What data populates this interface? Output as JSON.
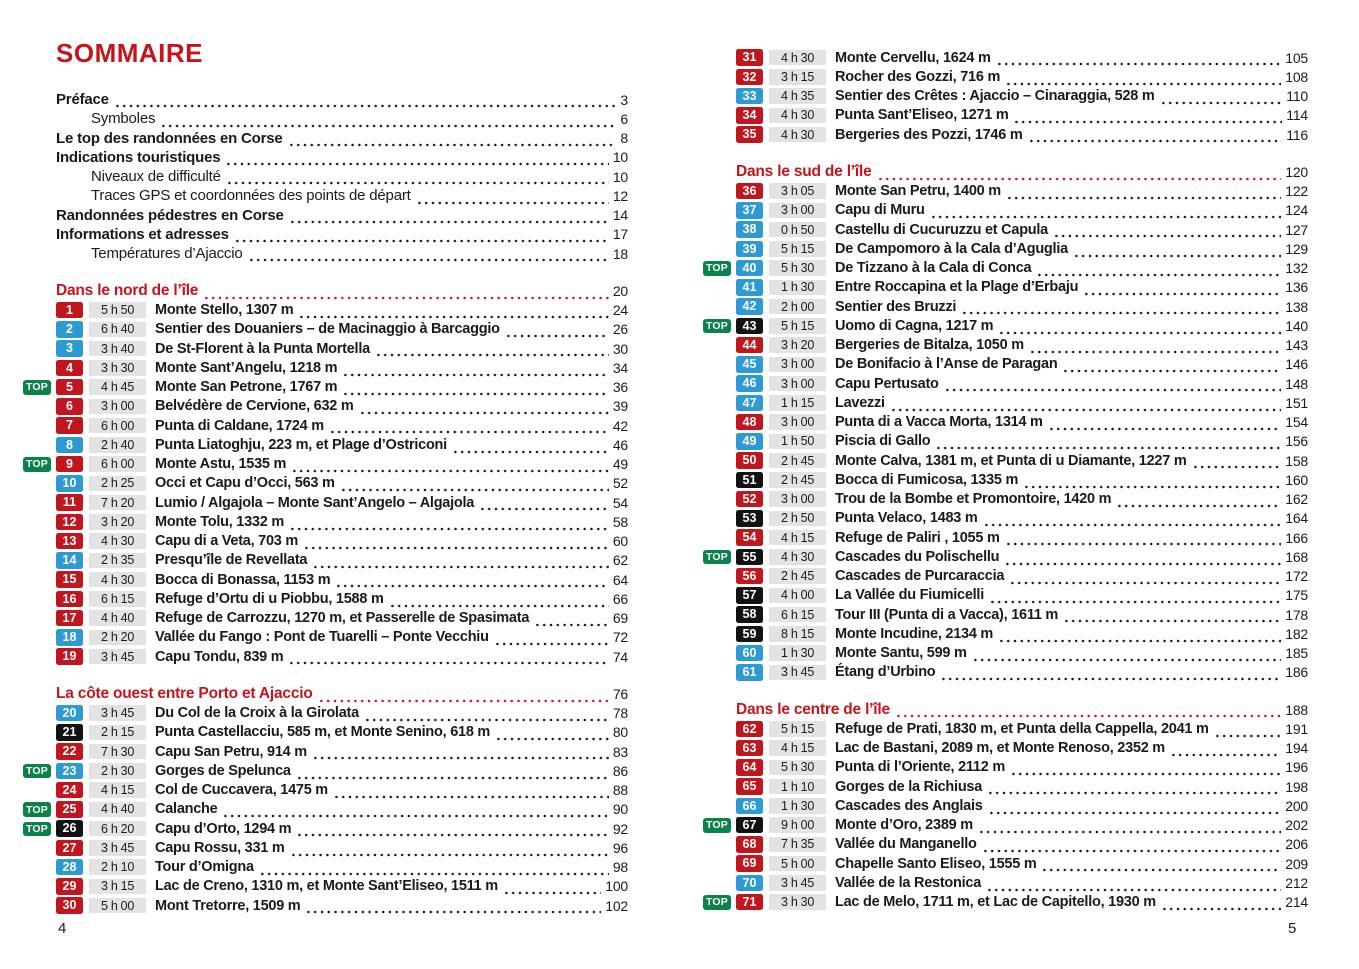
{
  "title": "SOMMAIRE",
  "top_label": "TOP",
  "folio_left": "4",
  "folio_right": "5",
  "colors": {
    "heading_red": "#c6141c",
    "badge_red": "#c2161e",
    "badge_blue": "#2d9ad3",
    "badge_black": "#121212",
    "top_green": "#0b8249",
    "time_chip_bg": "#e3e3e3",
    "text": "#1a1a1a"
  },
  "front_matter": [
    {
      "label": "Préface",
      "page": "3",
      "style": "main"
    },
    {
      "label": "Symboles",
      "page": "6",
      "style": "sub"
    },
    {
      "label": "Le top des randonnées en Corse",
      "page": "8",
      "style": "main"
    },
    {
      "label": "Indications touristiques",
      "page": "10",
      "style": "main"
    },
    {
      "label": "Niveaux de difficulté",
      "page": "10",
      "style": "sub"
    },
    {
      "label": "Traces GPS et coordonnées des points de départ",
      "page": "12",
      "style": "sub"
    },
    {
      "label": "Randonnées pédestres en Corse",
      "page": "14",
      "style": "main"
    },
    {
      "label": "Informations et adresses",
      "page": "17",
      "style": "main"
    },
    {
      "label": "Températures d’Ajaccio",
      "page": "18",
      "style": "sub"
    }
  ],
  "left_sections": [
    {
      "heading": "Dans le nord de l’île",
      "page": "20",
      "entries": [
        {
          "num": "1",
          "level": "red",
          "top": false,
          "time": "5 h 50",
          "title": "Monte Stello, 1307 m",
          "page": "24"
        },
        {
          "num": "2",
          "level": "blue",
          "top": false,
          "time": "6 h 40",
          "title": "Sentier des Douaniers – de Macinaggio à Barcaggio",
          "page": "26"
        },
        {
          "num": "3",
          "level": "blue",
          "top": false,
          "time": "3 h 40",
          "title": "De St-Florent à la Punta Mortella",
          "page": "30"
        },
        {
          "num": "4",
          "level": "red",
          "top": false,
          "time": "3 h 30",
          "title": "Monte Sant’Angelu, 1218 m",
          "page": "34"
        },
        {
          "num": "5",
          "level": "red",
          "top": true,
          "time": "4 h 45",
          "title": "Monte San Petrone, 1767 m",
          "page": "36"
        },
        {
          "num": "6",
          "level": "red",
          "top": false,
          "time": "3 h 00",
          "title": "Belvédère de Cervione, 632 m",
          "page": "39"
        },
        {
          "num": "7",
          "level": "red",
          "top": false,
          "time": "6 h 00",
          "title": "Punta di Caldane, 1724 m",
          "page": "42"
        },
        {
          "num": "8",
          "level": "blue",
          "top": false,
          "time": "2 h 40",
          "title": "Punta Liatoghju, 223 m, et Plage d’Ostriconi",
          "page": "46"
        },
        {
          "num": "9",
          "level": "red",
          "top": true,
          "time": "6 h 00",
          "title": "Monte Astu, 1535 m",
          "page": "49"
        },
        {
          "num": "10",
          "level": "blue",
          "top": false,
          "time": "2 h 25",
          "title": "Occi et Capu d’Occi, 563 m",
          "page": "52"
        },
        {
          "num": "11",
          "level": "red",
          "top": false,
          "time": "7 h 20",
          "title": "Lumio / Algajola – Monte Sant’Angelo – Algajola",
          "page": "54"
        },
        {
          "num": "12",
          "level": "red",
          "top": false,
          "time": "3 h 20",
          "title": "Monte Tolu, 1332 m",
          "page": "58"
        },
        {
          "num": "13",
          "level": "red",
          "top": false,
          "time": "4 h 30",
          "title": "Capu di a Veta, 703 m",
          "page": "60"
        },
        {
          "num": "14",
          "level": "blue",
          "top": false,
          "time": "2 h 35",
          "title": "Presqu’île de Revellata",
          "page": "62"
        },
        {
          "num": "15",
          "level": "red",
          "top": false,
          "time": "4 h 30",
          "title": "Bocca di Bonassa, 1153 m",
          "page": "64"
        },
        {
          "num": "16",
          "level": "red",
          "top": false,
          "time": "6 h 15",
          "title": "Refuge d’Ortu di u Piobbu, 1588 m",
          "page": "66"
        },
        {
          "num": "17",
          "level": "red",
          "top": false,
          "time": "4 h 40",
          "title": "Refuge de Carrozzu, 1270 m, et Passerelle de Spasimata",
          "page": "69"
        },
        {
          "num": "18",
          "level": "blue",
          "top": false,
          "time": "2 h 20",
          "title": "Vallée du Fango : Pont de Tuarelli – Ponte Vecchiu",
          "page": "72"
        },
        {
          "num": "19",
          "level": "red",
          "top": false,
          "time": "3 h 45",
          "title": "Capu Tondu, 839 m",
          "page": "74"
        }
      ]
    },
    {
      "heading": "La côte ouest entre Porto et Ajaccio",
      "page": "76",
      "entries": [
        {
          "num": "20",
          "level": "blue",
          "top": false,
          "time": "3 h 45",
          "title": "Du Col de la Croix à la Girolata",
          "page": "78"
        },
        {
          "num": "21",
          "level": "black",
          "top": false,
          "time": "2 h 15",
          "title": "Punta Castellacciu, 585 m, et Monte Senino, 618 m",
          "page": "80"
        },
        {
          "num": "22",
          "level": "red",
          "top": false,
          "time": "7 h 30",
          "title": "Capu San Petru, 914 m",
          "page": "83"
        },
        {
          "num": "23",
          "level": "blue",
          "top": true,
          "time": "2 h 30",
          "title": "Gorges de Spelunca",
          "page": "86"
        },
        {
          "num": "24",
          "level": "red",
          "top": false,
          "time": "4 h 15",
          "title": "Col de Cuccavera, 1475 m",
          "page": "88"
        },
        {
          "num": "25",
          "level": "red",
          "top": true,
          "time": "4 h 40",
          "title": "Calanche",
          "page": "90"
        },
        {
          "num": "26",
          "level": "black",
          "top": true,
          "time": "6 h 20",
          "title": "Capu d’Orto, 1294 m",
          "page": "92"
        },
        {
          "num": "27",
          "level": "red",
          "top": false,
          "time": "3 h 45",
          "title": "Capu Rossu, 331 m",
          "page": "96"
        },
        {
          "num": "28",
          "level": "blue",
          "top": false,
          "time": "2 h 10",
          "title": "Tour d’Omigna",
          "page": "98"
        },
        {
          "num": "29",
          "level": "red",
          "top": false,
          "time": "3 h 15",
          "title": "Lac de Creno, 1310 m, et Monte Sant’Eliseo, 1511 m",
          "page": "100"
        },
        {
          "num": "30",
          "level": "red",
          "top": false,
          "time": "5 h 00",
          "title": "Mont Tretorre, 1509 m",
          "page": "102"
        }
      ]
    }
  ],
  "right_continued_entries": [
    {
      "num": "31",
      "level": "red",
      "top": false,
      "time": "4 h 30",
      "title": "Monte Cervellu, 1624 m",
      "page": "105"
    },
    {
      "num": "32",
      "level": "red",
      "top": false,
      "time": "3 h 15",
      "title": "Rocher des Gozzi, 716 m",
      "page": "108"
    },
    {
      "num": "33",
      "level": "blue",
      "top": false,
      "time": "4 h 35",
      "title": "Sentier des Crêtes : Ajaccio – Cinaraggia, 528 m",
      "page": "110"
    },
    {
      "num": "34",
      "level": "red",
      "top": false,
      "time": "4 h 30",
      "title": "Punta Sant’Eliseo, 1271 m",
      "page": "114"
    },
    {
      "num": "35",
      "level": "red",
      "top": false,
      "time": "4 h 30",
      "title": "Bergeries des Pozzi, 1746 m",
      "page": "116"
    }
  ],
  "right_sections": [
    {
      "heading": "Dans le sud de l’île",
      "page": "120",
      "entries": [
        {
          "num": "36",
          "level": "red",
          "top": false,
          "time": "3 h 05",
          "title": "Monte San Petru, 1400 m",
          "page": "122"
        },
        {
          "num": "37",
          "level": "blue",
          "top": false,
          "time": "3 h 00",
          "title": "Capu di Muru",
          "page": "124"
        },
        {
          "num": "38",
          "level": "blue",
          "top": false,
          "time": "0 h 50",
          "title": "Castellu di Cucuruzzu et Capula",
          "page": "127"
        },
        {
          "num": "39",
          "level": "blue",
          "top": false,
          "time": "5 h 15",
          "title": "De Campomoro à la Cala d’Aguglia",
          "page": "129"
        },
        {
          "num": "40",
          "level": "blue",
          "top": true,
          "time": "5 h 30",
          "title": "De Tizzano à la Cala di Conca",
          "page": "132"
        },
        {
          "num": "41",
          "level": "blue",
          "top": false,
          "time": "1 h 30",
          "title": "Entre Roccapina et la Plage d’Erbaju",
          "page": "136"
        },
        {
          "num": "42",
          "level": "blue",
          "top": false,
          "time": "2 h 00",
          "title": "Sentier des Bruzzi",
          "page": "138"
        },
        {
          "num": "43",
          "level": "black",
          "top": true,
          "time": "5 h 15",
          "title": "Uomo di Cagna, 1217 m",
          "page": "140"
        },
        {
          "num": "44",
          "level": "red",
          "top": false,
          "time": "3 h 20",
          "title": "Bergeries de Bitalza, 1050 m",
          "page": "143"
        },
        {
          "num": "45",
          "level": "blue",
          "top": false,
          "time": "3 h 00",
          "title": "De Bonifacio à l’Anse de Paragan",
          "page": "146"
        },
        {
          "num": "46",
          "level": "blue",
          "top": false,
          "time": "3 h 00",
          "title": "Capu Pertusato",
          "page": "148"
        },
        {
          "num": "47",
          "level": "blue",
          "top": false,
          "time": "1 h 15",
          "title": "Lavezzi",
          "page": "151"
        },
        {
          "num": "48",
          "level": "red",
          "top": false,
          "time": "3 h 00",
          "title": "Punta di a Vacca Morta, 1314 m",
          "page": "154"
        },
        {
          "num": "49",
          "level": "blue",
          "top": false,
          "time": "1 h 50",
          "title": "Piscia di Gallo",
          "page": "156"
        },
        {
          "num": "50",
          "level": "red",
          "top": false,
          "time": "2 h 45",
          "title": "Monte Calva, 1381 m, et Punta di u Diamante, 1227 m",
          "page": "158"
        },
        {
          "num": "51",
          "level": "black",
          "top": false,
          "time": "2 h 45",
          "title": "Bocca di Fumicosa, 1335 m",
          "page": "160"
        },
        {
          "num": "52",
          "level": "red",
          "top": false,
          "time": "3 h 00",
          "title": "Trou de la Bombe et Promontoire, 1420 m",
          "page": "162"
        },
        {
          "num": "53",
          "level": "black",
          "top": false,
          "time": "2 h 50",
          "title": "Punta Velaco, 1483 m",
          "page": "164"
        },
        {
          "num": "54",
          "level": "red",
          "top": false,
          "time": "4 h 15",
          "title": "Refuge de Paliri , 1055 m",
          "page": "166"
        },
        {
          "num": "55",
          "level": "black",
          "top": true,
          "time": "4 h 30",
          "title": "Cascades du Polischellu",
          "page": "168"
        },
        {
          "num": "56",
          "level": "red",
          "top": false,
          "time": "2 h 45",
          "title": "Cascades de Purcaraccia",
          "page": "172"
        },
        {
          "num": "57",
          "level": "black",
          "top": false,
          "time": "4 h 00",
          "title": "La Vallée du Fiumicelli",
          "page": "175"
        },
        {
          "num": "58",
          "level": "black",
          "top": false,
          "time": "6 h 15",
          "title": "Tour III (Punta di a Vacca), 1611 m",
          "page": "178"
        },
        {
          "num": "59",
          "level": "black",
          "top": false,
          "time": "8 h 15",
          "title": "Monte Incudine, 2134 m",
          "page": "182"
        },
        {
          "num": "60",
          "level": "blue",
          "top": false,
          "time": "1 h 30",
          "title": "Monte Santu, 599 m",
          "page": "185"
        },
        {
          "num": "61",
          "level": "blue",
          "top": false,
          "time": "3 h 45",
          "title": "Étang d’Urbino",
          "page": "186"
        }
      ]
    },
    {
      "heading": "Dans le centre de l’île",
      "page": "188",
      "entries": [
        {
          "num": "62",
          "level": "red",
          "top": false,
          "time": "5 h 15",
          "title": "Refuge de Prati, 1830 m, et Punta della Cappella, 2041 m",
          "page": "191"
        },
        {
          "num": "63",
          "level": "red",
          "top": false,
          "time": "4 h 15",
          "title": "Lac de Bastani, 2089 m, et Monte Renoso, 2352 m",
          "page": "194"
        },
        {
          "num": "64",
          "level": "red",
          "top": false,
          "time": "5 h 30",
          "title": "Punta di l’Oriente, 2112 m",
          "page": "196"
        },
        {
          "num": "65",
          "level": "red",
          "top": false,
          "time": "1 h 10",
          "title": "Gorges de la Richiusa",
          "page": "198"
        },
        {
          "num": "66",
          "level": "blue",
          "top": false,
          "time": "1 h 30",
          "title": "Cascades des Anglais",
          "page": "200"
        },
        {
          "num": "67",
          "level": "black",
          "top": true,
          "time": "9 h 00",
          "title": "Monte d’Oro, 2389 m",
          "page": "202"
        },
        {
          "num": "68",
          "level": "red",
          "top": false,
          "time": "7 h 35",
          "title": "Vallée du Manganello",
          "page": "206"
        },
        {
          "num": "69",
          "level": "red",
          "top": false,
          "time": "5 h 00",
          "title": "Chapelle Santo Eliseo, 1555 m",
          "page": "209"
        },
        {
          "num": "70",
          "level": "blue",
          "top": false,
          "time": "3 h 45",
          "title": "Vallée de la Restonica",
          "page": "212"
        },
        {
          "num": "71",
          "level": "red",
          "top": true,
          "time": "3 h 30",
          "title": "Lac de Melo, 1711 m, et Lac de Capitello, 1930 m",
          "page": "214"
        }
      ]
    }
  ]
}
